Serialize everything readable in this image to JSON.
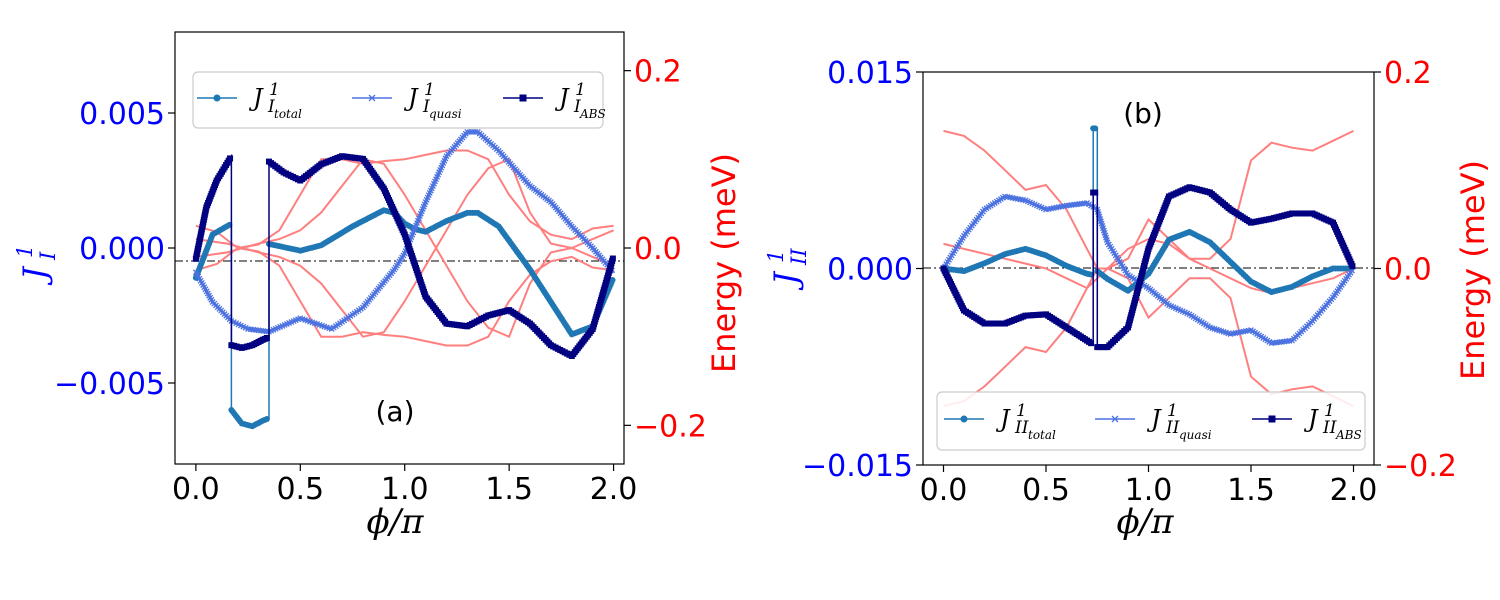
{
  "chart_data": [
    {
      "type": "line",
      "panel_label": "(a)",
      "xlabel": "ϕ/π",
      "ylabel_left": {
        "base": "J",
        "sup": "1",
        "sub": "I"
      },
      "ylabel_right": "Energy (meV)",
      "xlim": [
        -0.1,
        2.05
      ],
      "ylim_left": [
        -0.008,
        0.008
      ],
      "ylim_right": [
        -0.2436,
        0.2436
      ],
      "xticks": [
        0.0,
        0.5,
        1.0,
        1.5,
        2.0
      ],
      "xtick_labels": [
        "0.0",
        "0.5",
        "1.0",
        "1.5",
        "2.0"
      ],
      "yticks_left": [
        -0.005,
        0.0,
        0.005
      ],
      "ytick_labels_left": [
        "−0.005",
        "0.000",
        "0.005"
      ],
      "yticks_right": [
        -0.2,
        0.0,
        0.2
      ],
      "ytick_labels_right": [
        "−0.2",
        "0.0",
        "0.2"
      ],
      "legend_position": "top",
      "series": [
        {
          "name": "total",
          "label": {
            "base": "J",
            "sup": "1",
            "sub1": "I",
            "sub2": "total"
          },
          "color": "#1f77b4",
          "marker": "circle",
          "x": [
            0.0,
            0.08,
            0.17,
            0.17,
            0.22,
            0.27,
            0.32,
            0.35,
            0.35,
            0.5,
            0.6,
            0.75,
            0.9,
            0.95,
            1.0,
            1.05,
            1.1,
            1.2,
            1.3,
            1.35,
            1.45,
            1.6,
            1.7,
            1.8,
            1.9,
            2.0
          ],
          "y": [
            -0.0011,
            0.0005,
            0.0009,
            -0.006,
            -0.0065,
            -0.0066,
            -0.0064,
            -0.0063,
            0.00015,
            -0.0001,
            0.0001,
            0.0008,
            0.0014,
            0.0013,
            0.0009,
            0.0007,
            0.0006,
            0.001,
            0.0013,
            0.0013,
            0.0008,
            -0.0008,
            -0.002,
            -0.0032,
            -0.0029,
            -0.0011
          ]
        },
        {
          "name": "quasi",
          "label": {
            "base": "J",
            "sup": "1",
            "sub1": "I",
            "sub2": "quasi"
          },
          "color": "#4c72e0",
          "marker": "x",
          "x": [
            0.0,
            0.08,
            0.17,
            0.25,
            0.35,
            0.5,
            0.65,
            0.8,
            0.95,
            1.0,
            1.1,
            1.2,
            1.3,
            1.35,
            1.45,
            1.6,
            1.7,
            1.8,
            1.9,
            2.0
          ],
          "y": [
            -0.0009,
            -0.002,
            -0.0027,
            -0.003,
            -0.0031,
            -0.0026,
            -0.003,
            -0.0022,
            -0.0008,
            -0.0002,
            0.0017,
            0.0034,
            0.0043,
            0.0043,
            0.0036,
            0.0023,
            0.0017,
            0.0008,
            0.0,
            -0.0009
          ]
        },
        {
          "name": "ABS",
          "label": {
            "base": "J",
            "sup": "1",
            "sub1": "I",
            "sub2": "ABS"
          },
          "color": "#000080",
          "marker": "square",
          "x": [
            0.0,
            0.05,
            0.1,
            0.17,
            0.17,
            0.22,
            0.27,
            0.32,
            0.35,
            0.35,
            0.42,
            0.5,
            0.6,
            0.7,
            0.8,
            0.9,
            1.0,
            1.1,
            1.2,
            1.3,
            1.4,
            1.5,
            1.6,
            1.7,
            1.8,
            1.9,
            2.0
          ],
          "y": [
            -0.0004,
            0.0015,
            0.0025,
            0.0034,
            -0.0036,
            -0.0037,
            -0.0036,
            -0.0034,
            -0.0033,
            0.0032,
            0.0028,
            0.0025,
            0.0031,
            0.0034,
            0.0033,
            0.0022,
            0.0005,
            -0.0018,
            -0.0028,
            -0.0029,
            -0.0025,
            -0.0023,
            -0.0028,
            -0.0036,
            -0.004,
            -0.003,
            -0.0003
          ]
        },
        {
          "name": "energy",
          "axis": "right",
          "color": "#ff7f7f",
          "marker": "none",
          "lines": [
            {
              "x": [
                0.0,
                0.1,
                0.2,
                0.3,
                0.4,
                0.5,
                0.6,
                0.7,
                0.8,
                0.9,
                1.0,
                1.1,
                1.2,
                1.3,
                1.4,
                1.5,
                1.6,
                1.7,
                1.8,
                1.9,
                2.0
              ],
              "y": [
                0.025,
                0.018,
                0.0,
                0.004,
                0.02,
                0.06,
                0.1,
                0.1,
                0.095,
                0.098,
                0.1,
                0.105,
                0.11,
                0.11,
                0.1,
                0.06,
                0.03,
                0.015,
                0.01,
                0.022,
                0.025
              ]
            },
            {
              "x": [
                0.0,
                0.1,
                0.2,
                0.3,
                0.4,
                0.5,
                0.6,
                0.7,
                0.8,
                0.9,
                1.0,
                1.1,
                1.2,
                1.3,
                1.4,
                1.5,
                1.6,
                1.7,
                1.8,
                1.9,
                2.0
              ],
              "y": [
                -0.025,
                -0.018,
                0.0,
                -0.004,
                -0.02,
                -0.06,
                -0.1,
                -0.1,
                -0.095,
                -0.098,
                -0.1,
                -0.105,
                -0.11,
                -0.11,
                -0.1,
                -0.06,
                -0.03,
                -0.015,
                -0.01,
                -0.022,
                -0.025
              ]
            },
            {
              "x": [
                0.0,
                0.15,
                0.3,
                0.4,
                0.5,
                0.6,
                0.7,
                0.8,
                0.9,
                1.0,
                1.1,
                1.2,
                1.3,
                1.4,
                1.5,
                1.6,
                1.7,
                1.8,
                1.9,
                2.0
              ],
              "y": [
                -0.01,
                -0.005,
                0.005,
                0.01,
                0.02,
                0.04,
                0.07,
                0.1,
                0.095,
                0.06,
                0.02,
                -0.02,
                -0.06,
                -0.09,
                -0.1,
                -0.04,
                -0.005,
                0.0,
                -0.01,
                -0.02
              ]
            },
            {
              "x": [
                0.0,
                0.15,
                0.3,
                0.4,
                0.5,
                0.6,
                0.7,
                0.8,
                0.9,
                1.0,
                1.1,
                1.2,
                1.3,
                1.4,
                1.5,
                1.6,
                1.7,
                1.8,
                1.9,
                2.0
              ],
              "y": [
                0.01,
                0.005,
                -0.005,
                -0.01,
                -0.02,
                -0.04,
                -0.07,
                -0.1,
                -0.095,
                -0.06,
                -0.02,
                0.02,
                0.06,
                0.09,
                0.1,
                0.04,
                0.005,
                0.0,
                0.01,
                0.02
              ]
            }
          ]
        }
      ]
    },
    {
      "type": "line",
      "panel_label": "(b)",
      "xlabel": "ϕ/π",
      "ylabel_left": {
        "base": "J",
        "sup": "1",
        "sub": "II"
      },
      "ylabel_right": "Energy (meV)",
      "xlim": [
        -0.1,
        2.1
      ],
      "ylim_left": [
        -0.015,
        0.015
      ],
      "ylim_right": [
        -0.2,
        0.2
      ],
      "xticks": [
        0.0,
        0.5,
        1.0,
        1.5,
        2.0
      ],
      "xtick_labels": [
        "0.0",
        "0.5",
        "1.0",
        "1.5",
        "2.0"
      ],
      "yticks_left": [
        -0.015,
        0.0,
        0.015
      ],
      "ytick_labels_left": [
        "−0.015",
        "0.000",
        "0.015"
      ],
      "yticks_right": [
        -0.2,
        0.0,
        0.2
      ],
      "ytick_labels_right": [
        "−0.2",
        "0.0",
        "0.2"
      ],
      "legend_position": "bottom",
      "series": [
        {
          "name": "total",
          "label": {
            "base": "J",
            "sup": "1",
            "sub1": "II",
            "sub2": "total"
          },
          "color": "#1f77b4",
          "marker": "circle",
          "x": [
            0.0,
            0.1,
            0.2,
            0.3,
            0.4,
            0.5,
            0.6,
            0.7,
            0.73,
            0.73,
            0.75,
            0.75,
            0.8,
            0.9,
            1.0,
            1.1,
            1.2,
            1.3,
            1.4,
            1.5,
            1.6,
            1.7,
            1.8,
            1.9,
            2.0
          ],
          "y": [
            0.0,
            -0.0002,
            0.0004,
            0.0011,
            0.0015,
            0.001,
            0.0002,
            -0.0004,
            -0.0005,
            0.0107,
            0.0107,
            -0.0002,
            -0.0008,
            -0.0017,
            -0.0004,
            0.0022,
            0.0028,
            0.002,
            0.0005,
            -0.001,
            -0.0018,
            -0.0014,
            -0.0006,
            0.0,
            0.0
          ]
        },
        {
          "name": "quasi",
          "label": {
            "base": "J",
            "sup": "1",
            "sub1": "II",
            "sub2": "quasi"
          },
          "color": "#4c72e0",
          "marker": "x",
          "x": [
            0.0,
            0.1,
            0.2,
            0.3,
            0.4,
            0.5,
            0.6,
            0.7,
            0.75,
            0.8,
            0.9,
            1.0,
            1.1,
            1.2,
            1.3,
            1.4,
            1.5,
            1.6,
            1.7,
            1.8,
            1.9,
            2.0
          ],
          "y": [
            0.0,
            0.0025,
            0.0045,
            0.0055,
            0.0052,
            0.0045,
            0.0048,
            0.005,
            0.0045,
            0.002,
            -0.0005,
            -0.0015,
            -0.0028,
            -0.0035,
            -0.0045,
            -0.005,
            -0.0047,
            -0.0057,
            -0.0055,
            -0.004,
            -0.0022,
            0.0
          ]
        },
        {
          "name": "ABS",
          "label": {
            "base": "J",
            "sup": "1",
            "sub1": "II",
            "sub2": "ABS"
          },
          "color": "#000080",
          "marker": "square",
          "x": [
            0.0,
            0.1,
            0.2,
            0.3,
            0.4,
            0.5,
            0.6,
            0.7,
            0.73,
            0.73,
            0.75,
            0.75,
            0.8,
            0.9,
            1.0,
            1.1,
            1.2,
            1.3,
            1.4,
            1.5,
            1.6,
            1.7,
            1.8,
            1.9,
            2.0
          ],
          "y": [
            0.0,
            -0.0032,
            -0.0042,
            -0.0042,
            -0.0036,
            -0.0035,
            -0.0045,
            -0.0055,
            -0.0058,
            0.0058,
            0.0058,
            -0.006,
            -0.006,
            -0.0045,
            0.0015,
            0.0055,
            0.0062,
            0.0058,
            0.0045,
            0.0035,
            0.0038,
            0.0042,
            0.0042,
            0.0035,
            0.0
          ]
        },
        {
          "name": "energy",
          "axis": "right",
          "color": "#ff7f7f",
          "marker": "none",
          "lines": [
            {
              "x": [
                0.0,
                0.1,
                0.2,
                0.3,
                0.4,
                0.5,
                0.6,
                0.7,
                0.75,
                0.8,
                0.9,
                1.0,
                1.1,
                1.2,
                1.3,
                1.4,
                1.5,
                1.6,
                1.7,
                1.8,
                1.9,
                2.0
              ],
              "y": [
                0.14,
                0.135,
                0.12,
                0.1,
                0.08,
                0.085,
                0.06,
                0.02,
                0.0,
                0.0,
                0.01,
                0.05,
                0.03,
                0.01,
                0.01,
                0.03,
                0.11,
                0.128,
                0.123,
                0.12,
                0.13,
                0.14
              ]
            },
            {
              "x": [
                0.0,
                0.1,
                0.2,
                0.3,
                0.4,
                0.5,
                0.6,
                0.7,
                0.75,
                0.8,
                0.9,
                1.0,
                1.1,
                1.2,
                1.3,
                1.4,
                1.5,
                1.6,
                1.7,
                1.8,
                1.9,
                2.0
              ],
              "y": [
                -0.14,
                -0.135,
                -0.12,
                -0.1,
                -0.08,
                -0.085,
                -0.06,
                -0.02,
                0.0,
                0.0,
                -0.01,
                -0.05,
                -0.03,
                -0.01,
                -0.01,
                -0.03,
                -0.11,
                -0.128,
                -0.123,
                -0.12,
                -0.13,
                -0.14
              ]
            },
            {
              "x": [
                0.0,
                0.1,
                0.2,
                0.3,
                0.4,
                0.5,
                0.6,
                0.7,
                0.75,
                0.8,
                0.9,
                1.0,
                1.1,
                1.2,
                1.3,
                1.4,
                1.5,
                1.6,
                1.7,
                1.8,
                1.9,
                2.0
              ],
              "y": [
                0.025,
                0.02,
                0.015,
                0.01,
                0.005,
                0.0,
                -0.01,
                -0.02,
                -0.01,
                0.0,
                0.02,
                0.03,
                0.025,
                0.01,
                0.0,
                -0.01,
                -0.02,
                -0.025,
                -0.02,
                -0.015,
                -0.01,
                0.0
              ]
            }
          ]
        }
      ]
    }
  ]
}
